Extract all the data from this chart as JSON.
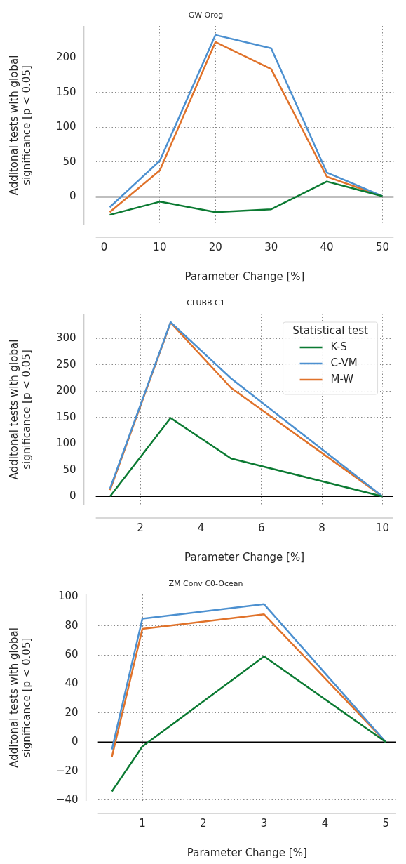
{
  "chart_data": [
    {
      "type": "line",
      "title": "GW Orog",
      "xlabel": "Parameter Change [%]",
      "ylabel": "Additonal tests with global\nsignificance [p < 0.05]",
      "x": [
        1,
        10,
        20,
        30,
        40,
        50
      ],
      "xlim": [
        -1.5,
        52
      ],
      "xticks": [
        0,
        10,
        20,
        30,
        40,
        50
      ],
      "ylim": [
        -40,
        246
      ],
      "yticks": [
        0,
        50,
        100,
        150,
        200
      ],
      "grid": true,
      "legend": false,
      "marker": "none",
      "line_style": "solid",
      "ref_lines": [
        {
          "axis": "y",
          "value": 0,
          "color": "#000000"
        }
      ],
      "series": [
        {
          "color": "#0b7a32",
          "values": [
            -26,
            -7,
            -22,
            -18,
            22,
            1
          ]
        },
        {
          "color": "#4c90d0",
          "values": [
            -15,
            52,
            233,
            214,
            35,
            1
          ]
        },
        {
          "color": "#e0722a",
          "values": [
            -22,
            38,
            223,
            184,
            29,
            1
          ]
        }
      ]
    },
    {
      "type": "line",
      "title": "CLUBB C1",
      "xlabel": "Parameter Change [%]",
      "ylabel": "Additonal tests with global\nsignificance [p < 0.05]",
      "x": [
        1,
        3,
        5,
        10
      ],
      "xlim": [
        0.53,
        10.35
      ],
      "xticks": [
        2,
        4,
        6,
        8,
        10
      ],
      "ylim": [
        -17,
        347
      ],
      "yticks": [
        0,
        50,
        100,
        150,
        200,
        250,
        300
      ],
      "grid": true,
      "legend": "top right",
      "legend_title": "Statistical test",
      "marker": "none",
      "line_style": "solid",
      "ref_lines": [
        {
          "axis": "y",
          "value": 0,
          "color": "#000000"
        }
      ],
      "series": [
        {
          "name": "K-S",
          "color": "#0b7a32",
          "values": [
            0,
            149,
            72,
            0
          ]
        },
        {
          "name": "C-VM",
          "color": "#4c90d0",
          "values": [
            15,
            331,
            224,
            0
          ]
        },
        {
          "name": "M-W",
          "color": "#e0722a",
          "values": [
            12,
            330,
            206,
            0
          ]
        }
      ]
    },
    {
      "type": "line",
      "title": "ZM Conv C0-Ocean",
      "xlabel": "Parameter Change [%]",
      "ylabel": "Additonal tests with global\nsignificance [p < 0.05]",
      "x": [
        0.5,
        1,
        3,
        5
      ],
      "xlim": [
        0.27,
        5.17
      ],
      "xticks": [
        1,
        2,
        3,
        4,
        5
      ],
      "ylim": [
        -40.5,
        101.7
      ],
      "yticks": [
        -40,
        -20,
        0,
        20,
        40,
        60,
        80,
        100
      ],
      "grid": true,
      "legend": false,
      "marker": "none",
      "line_style": "solid",
      "ref_lines": [
        {
          "axis": "y",
          "value": 0,
          "color": "#000000"
        }
      ],
      "series": [
        {
          "color": "#0b7a32",
          "values": [
            -34,
            -3,
            59,
            0
          ]
        },
        {
          "color": "#4c90d0",
          "values": [
            -5,
            85,
            95,
            0
          ]
        },
        {
          "color": "#e0722a",
          "values": [
            -10,
            78,
            88,
            0
          ]
        }
      ]
    }
  ]
}
